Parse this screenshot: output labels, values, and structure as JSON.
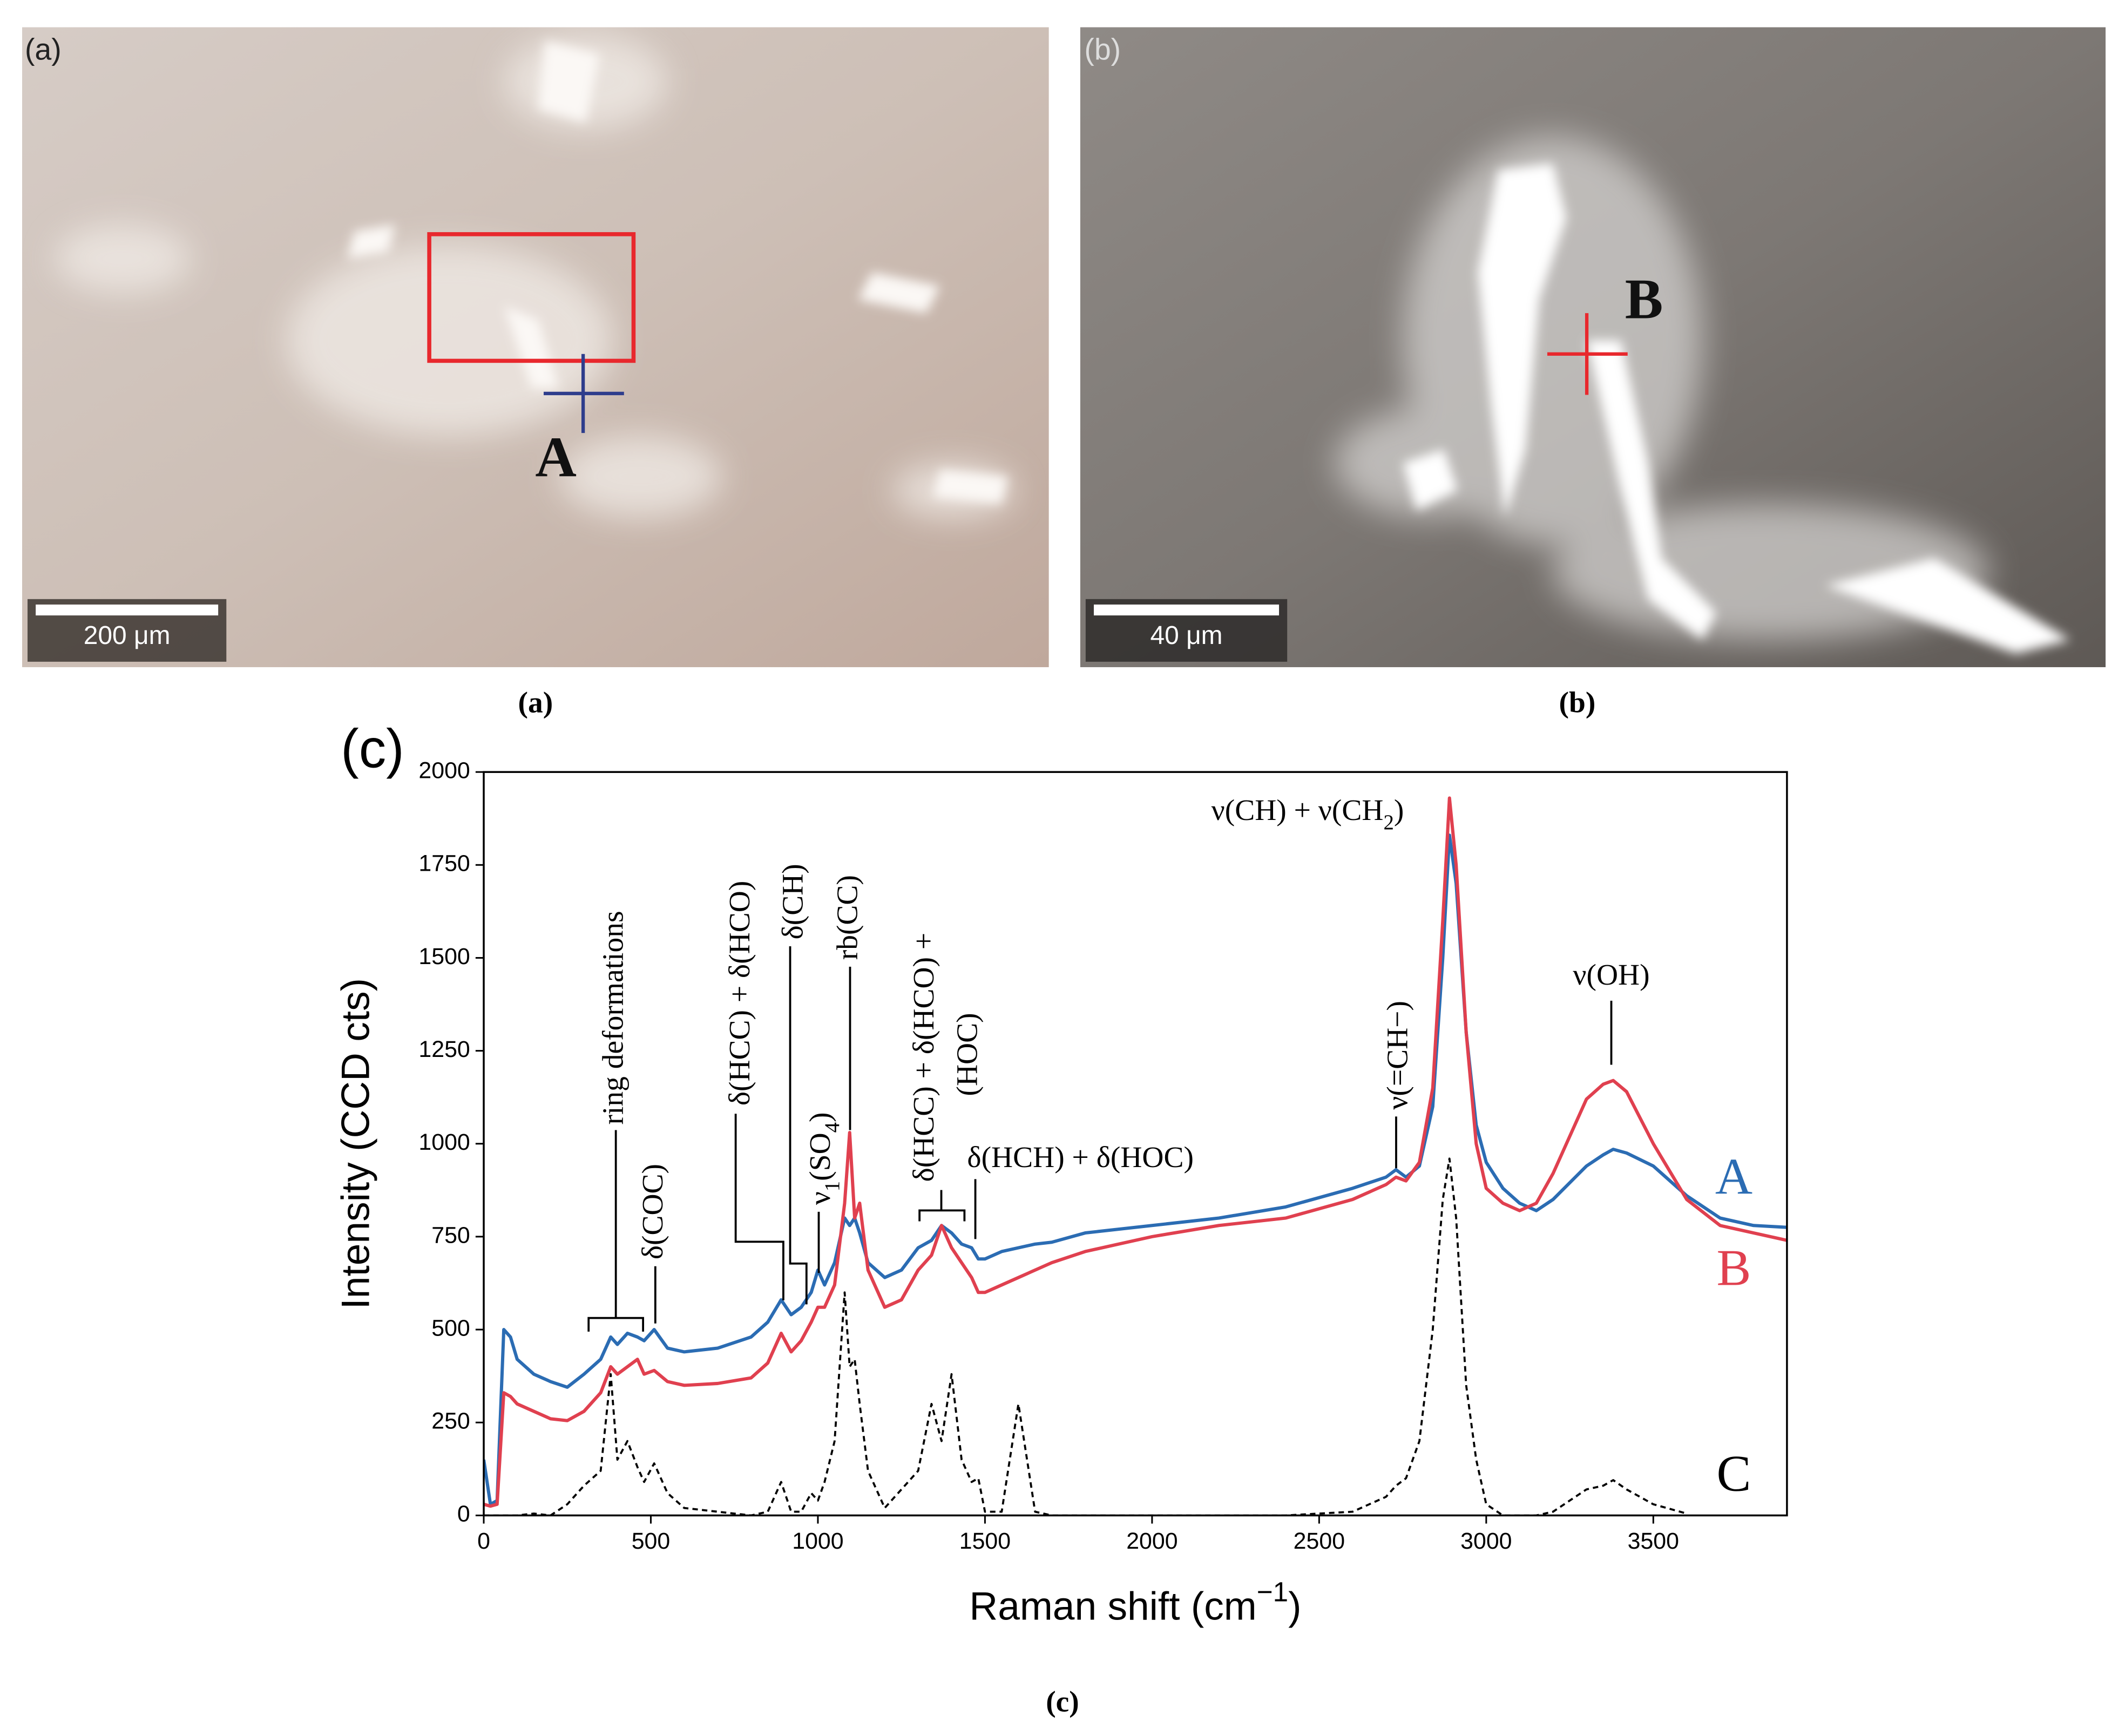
{
  "panels": [
    {
      "label": "(a)",
      "scale_bar": "200 μm",
      "marker": "A",
      "caption": "(a)"
    },
    {
      "label": "(b)",
      "scale_bar": "40 μm",
      "marker": "B",
      "caption": "(b)"
    }
  ],
  "chart_data": {
    "type": "line",
    "panel_label": "(c)",
    "caption": "(c)",
    "y_label": "Intensity (CCD cts)",
    "x_label": [
      {
        "text": "Raman shift (cm"
      },
      {
        "sup": "−1"
      },
      {
        "text": ")"
      }
    ],
    "xlim": [
      0,
      3900
    ],
    "ylim": [
      0,
      2000
    ],
    "xticks": [
      0,
      500,
      1000,
      1500,
      2000,
      2500,
      3000,
      3500
    ],
    "yticks": [
      0,
      250,
      500,
      750,
      1000,
      1250,
      1500,
      1750,
      2000
    ],
    "x": [
      0,
      20,
      40,
      60,
      80,
      100,
      150,
      200,
      250,
      300,
      350,
      380,
      400,
      430,
      460,
      480,
      510,
      550,
      600,
      700,
      800,
      850,
      890,
      920,
      950,
      980,
      1000,
      1020,
      1050,
      1080,
      1095,
      1110,
      1125,
      1150,
      1200,
      1250,
      1300,
      1340,
      1370,
      1400,
      1430,
      1460,
      1480,
      1500,
      1550,
      1600,
      1650,
      1700,
      1800,
      1900,
      2000,
      2200,
      2400,
      2600,
      2700,
      2730,
      2760,
      2800,
      2840,
      2870,
      2890,
      2910,
      2940,
      2970,
      3000,
      3050,
      3100,
      3150,
      3200,
      3300,
      3350,
      3380,
      3420,
      3500,
      3600,
      3700,
      3800,
      3900
    ],
    "series": [
      {
        "name": "A",
        "color": "#2b6cb3",
        "dash": false,
        "values": [
          150,
          30,
          40,
          500,
          480,
          420,
          380,
          360,
          345,
          380,
          420,
          480,
          460,
          490,
          480,
          470,
          500,
          450,
          440,
          450,
          480,
          520,
          580,
          540,
          560,
          600,
          660,
          620,
          680,
          800,
          780,
          800,
          760,
          680,
          640,
          660,
          720,
          740,
          780,
          760,
          730,
          720,
          690,
          690,
          710,
          720,
          730,
          735,
          760,
          770,
          780,
          800,
          830,
          880,
          910,
          930,
          910,
          940,
          1100,
          1500,
          1830,
          1700,
          1300,
          1050,
          950,
          880,
          840,
          820,
          850,
          940,
          970,
          985,
          975,
          940,
          860,
          800,
          780,
          775
        ]
      },
      {
        "name": "B",
        "color": "#e0404f",
        "dash": false,
        "values": [
          30,
          25,
          30,
          330,
          320,
          300,
          280,
          260,
          255,
          280,
          330,
          400,
          380,
          400,
          420,
          380,
          390,
          360,
          350,
          355,
          370,
          410,
          490,
          440,
          470,
          520,
          560,
          560,
          620,
          840,
          1030,
          800,
          840,
          660,
          560,
          580,
          660,
          700,
          780,
          720,
          680,
          640,
          600,
          600,
          620,
          640,
          660,
          680,
          710,
          730,
          750,
          780,
          800,
          850,
          890,
          910,
          900,
          950,
          1150,
          1600,
          1930,
          1750,
          1300,
          1000,
          880,
          840,
          820,
          840,
          920,
          1120,
          1160,
          1170,
          1140,
          1000,
          850,
          780,
          760,
          740
        ]
      },
      {
        "name": "C",
        "color": "#000000",
        "dash": true,
        "values": [
          0,
          0,
          0,
          0,
          0,
          0,
          5,
          0,
          30,
          80,
          120,
          380,
          150,
          200,
          130,
          90,
          140,
          60,
          20,
          10,
          0,
          10,
          90,
          10,
          10,
          60,
          40,
          90,
          200,
          600,
          400,
          420,
          300,
          120,
          20,
          70,
          120,
          300,
          200,
          380,
          150,
          90,
          100,
          10,
          10,
          300,
          10,
          0,
          0,
          0,
          0,
          0,
          0,
          10,
          50,
          80,
          100,
          200,
          500,
          850,
          960,
          800,
          350,
          150,
          30,
          0,
          0,
          0,
          10,
          70,
          80,
          95,
          70,
          30,
          5,
          null,
          null,
          null
        ]
      }
    ],
    "annotations": [
      [
        {
          "text": "ring deformations"
        }
      ],
      [
        {
          "text": "δ(COC)"
        }
      ],
      [
        {
          "text": "δ(HCC) + δ(HCO)"
        }
      ],
      [
        {
          "text": "δ(CH)"
        }
      ],
      [
        {
          "text": "ν"
        },
        {
          "sub": "1"
        },
        {
          "text": "(SO"
        },
        {
          "sub": "4"
        },
        {
          "text": ")"
        }
      ],
      [
        {
          "text": "rb(CC)"
        }
      ],
      [
        {
          "text": "δ(HCC) + δ(HCO) +"
        }
      ],
      [
        {
          "text": "(HOC)"
        }
      ],
      [
        {
          "text": "δ(HCH) + δ(HOC)"
        }
      ],
      [
        {
          "text": "ν(=CH−)"
        }
      ],
      [
        {
          "text": "ν(CH) + ν(CH"
        },
        {
          "sub": "2"
        },
        {
          "text": ")"
        }
      ],
      [
        {
          "text": "ν(OH)"
        }
      ]
    ]
  }
}
